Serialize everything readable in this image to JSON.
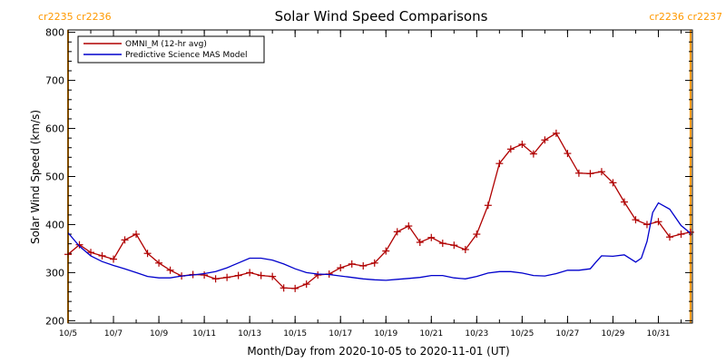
{
  "chart_data": {
    "type": "line",
    "title": "Solar Wind Speed Comparisons",
    "xlabel": "Month/Day from 2020-10-05 to 2020-11-01 (UT)",
    "ylabel": "Solar Wind Speed (km/s)",
    "ylim": [
      195,
      805
    ],
    "xlim": [
      "2020-10-05",
      "2020-11-01T12:00"
    ],
    "yticks": [
      200,
      300,
      400,
      500,
      600,
      700,
      800
    ],
    "xticks": [
      {
        "date": "2020-10-05",
        "label": "10/5"
      },
      {
        "date": "2020-10-07",
        "label": "10/7"
      },
      {
        "date": "2020-10-09",
        "label": "10/9"
      },
      {
        "date": "2020-10-11",
        "label": "10/11"
      },
      {
        "date": "2020-10-13",
        "label": "10/13"
      },
      {
        "date": "2020-10-15",
        "label": "10/15"
      },
      {
        "date": "2020-10-17",
        "label": "10/17"
      },
      {
        "date": "2020-10-19",
        "label": "10/19"
      },
      {
        "date": "2020-10-21",
        "label": "10/21"
      },
      {
        "date": "2020-10-23",
        "label": "10/23"
      },
      {
        "date": "2020-10-25",
        "label": "10/25"
      },
      {
        "date": "2020-10-27",
        "label": "10/27"
      },
      {
        "date": "2020-10-29",
        "label": "10/29"
      },
      {
        "date": "2020-10-31",
        "label": "10/31"
      }
    ],
    "carrington_markers": [
      {
        "date": "2020-10-05",
        "label": "cr2235 cr2236",
        "color": "#ff9900"
      },
      {
        "date": "2020-11-01T10:00",
        "label": "cr2236 cr2237",
        "color": "#ff9900"
      }
    ],
    "legend": {
      "placement": "top-left"
    },
    "series": [
      {
        "name": "OMNI_M (12-hr avg)",
        "color": "#b00000",
        "marker": "plus",
        "points": [
          [
            "2020-10-05T00:00",
            338
          ],
          [
            "2020-10-05T12:00",
            358
          ],
          [
            "2020-10-06T00:00",
            342
          ],
          [
            "2020-10-06T12:00",
            335
          ],
          [
            "2020-10-07T00:00",
            328
          ],
          [
            "2020-10-07T12:00",
            368
          ],
          [
            "2020-10-08T00:00",
            380
          ],
          [
            "2020-10-08T12:00",
            340
          ],
          [
            "2020-10-09T00:00",
            320
          ],
          [
            "2020-10-09T12:00",
            305
          ],
          [
            "2020-10-10T00:00",
            293
          ],
          [
            "2020-10-10T12:00",
            296
          ],
          [
            "2020-10-11T00:00",
            295
          ],
          [
            "2020-10-11T12:00",
            287
          ],
          [
            "2020-10-12T00:00",
            290
          ],
          [
            "2020-10-12T12:00",
            294
          ],
          [
            "2020-10-13T00:00",
            300
          ],
          [
            "2020-10-13T12:00",
            294
          ],
          [
            "2020-10-14T00:00",
            292
          ],
          [
            "2020-10-14T12:00",
            268
          ],
          [
            "2020-10-15T00:00",
            267
          ],
          [
            "2020-10-15T12:00",
            276
          ],
          [
            "2020-10-16T00:00",
            295
          ],
          [
            "2020-10-16T12:00",
            297
          ],
          [
            "2020-10-17T00:00",
            310
          ],
          [
            "2020-10-17T12:00",
            318
          ],
          [
            "2020-10-18T00:00",
            314
          ],
          [
            "2020-10-18T12:00",
            320
          ],
          [
            "2020-10-19T00:00",
            345
          ],
          [
            "2020-10-19T12:00",
            385
          ],
          [
            "2020-10-20T00:00",
            397
          ],
          [
            "2020-10-20T12:00",
            363
          ],
          [
            "2020-10-21T00:00",
            373
          ],
          [
            "2020-10-21T12:00",
            361
          ],
          [
            "2020-10-22T00:00",
            357
          ],
          [
            "2020-10-22T12:00",
            348
          ],
          [
            "2020-10-23T00:00",
            380
          ],
          [
            "2020-10-23T12:00",
            440
          ],
          [
            "2020-10-24T00:00",
            527
          ],
          [
            "2020-10-24T12:00",
            557
          ],
          [
            "2020-10-25T00:00",
            567
          ],
          [
            "2020-10-25T12:00",
            547
          ],
          [
            "2020-10-26T00:00",
            576
          ],
          [
            "2020-10-26T12:00",
            590
          ],
          [
            "2020-10-27T00:00",
            548
          ],
          [
            "2020-10-27T12:00",
            507
          ],
          [
            "2020-10-28T00:00",
            506
          ],
          [
            "2020-10-28T12:00",
            510
          ],
          [
            "2020-10-29T00:00",
            487
          ],
          [
            "2020-10-29T12:00",
            447
          ],
          [
            "2020-10-30T00:00",
            410
          ],
          [
            "2020-10-30T12:00",
            400
          ],
          [
            "2020-10-31T00:00",
            406
          ],
          [
            "2020-10-31T12:00",
            374
          ],
          [
            "2020-11-01T00:00",
            380
          ],
          [
            "2020-11-01T10:00",
            384
          ]
        ]
      },
      {
        "name": "Predictive Science MAS Model",
        "color": "#0000cc",
        "marker": "none",
        "points": [
          [
            "2020-10-05T00:00",
            383
          ],
          [
            "2020-10-05T12:00",
            355
          ],
          [
            "2020-10-06T00:00",
            335
          ],
          [
            "2020-10-06T12:00",
            323
          ],
          [
            "2020-10-07T00:00",
            315
          ],
          [
            "2020-10-07T12:00",
            308
          ],
          [
            "2020-10-08T00:00",
            300
          ],
          [
            "2020-10-08T12:00",
            292
          ],
          [
            "2020-10-09T00:00",
            289
          ],
          [
            "2020-10-09T12:00",
            289
          ],
          [
            "2020-10-10T00:00",
            293
          ],
          [
            "2020-10-10T12:00",
            295
          ],
          [
            "2020-10-11T00:00",
            298
          ],
          [
            "2020-10-11T12:00",
            302
          ],
          [
            "2020-10-12T00:00",
            310
          ],
          [
            "2020-10-12T12:00",
            320
          ],
          [
            "2020-10-13T00:00",
            330
          ],
          [
            "2020-10-13T12:00",
            330
          ],
          [
            "2020-10-14T00:00",
            326
          ],
          [
            "2020-10-14T12:00",
            318
          ],
          [
            "2020-10-15T00:00",
            308
          ],
          [
            "2020-10-15T12:00",
            300
          ],
          [
            "2020-10-16T00:00",
            297
          ],
          [
            "2020-10-16T12:00",
            296
          ],
          [
            "2020-10-17T00:00",
            293
          ],
          [
            "2020-10-17T12:00",
            290
          ],
          [
            "2020-10-18T00:00",
            287
          ],
          [
            "2020-10-18T12:00",
            285
          ],
          [
            "2020-10-19T00:00",
            284
          ],
          [
            "2020-10-19T12:00",
            286
          ],
          [
            "2020-10-20T00:00",
            288
          ],
          [
            "2020-10-20T12:00",
            290
          ],
          [
            "2020-10-21T00:00",
            294
          ],
          [
            "2020-10-21T12:00",
            294
          ],
          [
            "2020-10-22T00:00",
            289
          ],
          [
            "2020-10-22T12:00",
            287
          ],
          [
            "2020-10-23T00:00",
            292
          ],
          [
            "2020-10-23T12:00",
            299
          ],
          [
            "2020-10-24T00:00",
            302
          ],
          [
            "2020-10-24T12:00",
            302
          ],
          [
            "2020-10-25T00:00",
            299
          ],
          [
            "2020-10-25T12:00",
            294
          ],
          [
            "2020-10-26T00:00",
            293
          ],
          [
            "2020-10-26T12:00",
            298
          ],
          [
            "2020-10-27T00:00",
            305
          ],
          [
            "2020-10-27T12:00",
            305
          ],
          [
            "2020-10-28T00:00",
            308
          ],
          [
            "2020-10-28T06:00",
            322
          ],
          [
            "2020-10-28T12:00",
            335
          ],
          [
            "2020-10-29T00:00",
            334
          ],
          [
            "2020-10-29T12:00",
            337
          ],
          [
            "2020-10-30T00:00",
            322
          ],
          [
            "2020-10-30T06:00",
            330
          ],
          [
            "2020-10-30T12:00",
            365
          ],
          [
            "2020-10-30T18:00",
            425
          ],
          [
            "2020-10-31T00:00",
            445
          ],
          [
            "2020-10-31T12:00",
            432
          ],
          [
            "2020-11-01T00:00",
            398
          ],
          [
            "2020-11-01T10:00",
            382
          ]
        ]
      }
    ]
  }
}
